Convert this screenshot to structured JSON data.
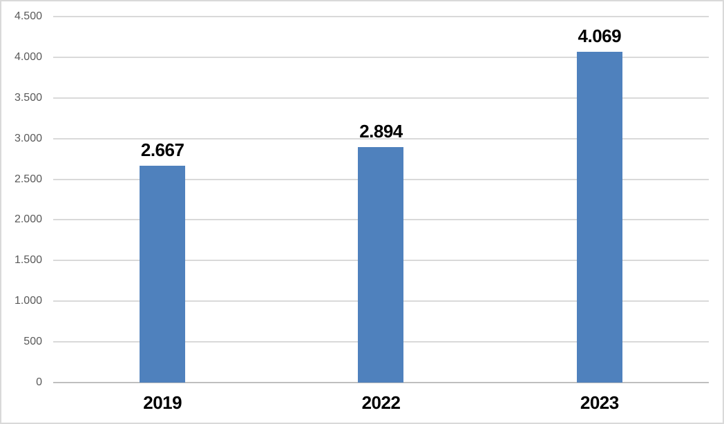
{
  "chart_data": {
    "type": "bar",
    "title": "",
    "xlabel": "",
    "ylabel": "",
    "categories": [
      "2019",
      "2022",
      "2023"
    ],
    "values": [
      2667,
      2894,
      4069
    ],
    "value_labels": [
      "2.667",
      "2.894",
      "4.069"
    ],
    "ylim": [
      0,
      4500
    ],
    "ytick_step": 500,
    "ytick_labels": [
      "0",
      "500",
      "1.000",
      "1.500",
      "2.000",
      "2.500",
      "3.000",
      "3.500",
      "4.000",
      "4.500"
    ],
    "grid": true,
    "legend": "none",
    "colors": {
      "bar": "#4f81bd",
      "gridline": "#d9d9d9",
      "axis_line": "#bfbfbf",
      "ytick_label": "#595959",
      "data_label": "#000000",
      "background": "#ffffff",
      "border": "#d9d9d9"
    }
  }
}
